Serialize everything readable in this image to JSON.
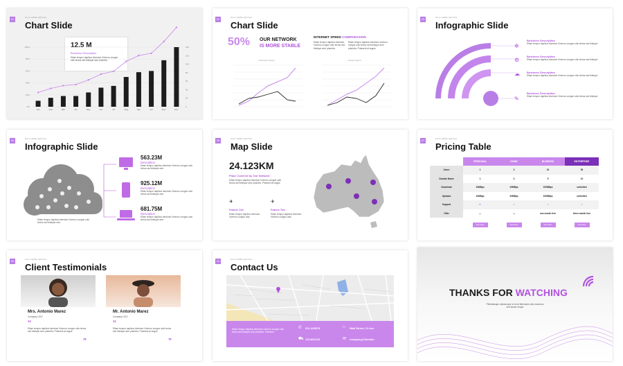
{
  "slides": {
    "chart1": {
      "num": "01",
      "tag": "lorem subtitle right here",
      "title": "Chart Slide",
      "stat": "12.5 M",
      "stat_label": "Business Description",
      "stat_body": "Etiam tempor dapibus interdum Viverrus congue odio lectus sed tristique sem pharetra"
    },
    "chart2": {
      "num": "02",
      "tag": "lorem subtitle right here",
      "title": "Chart Slide",
      "percent": "50%",
      "network_1": "OUR NETWORK",
      "network_2": "IS MORE STABLE",
      "speed_title_1": "INTERNET SPEED",
      "speed_title_2": "COMPARASION",
      "left_body": "Etiam tempor dapibus interdum Viverrus congue odio lectus sed tristique sem pharetra.",
      "right_body": "Etiam tempor dapibus interdum Viverrus congue odio lectus sed tristique sem pharetra. Praesent at augue",
      "download_label": "Download Speed",
      "upload_label": "Upload Speed"
    },
    "infographic1": {
      "num": "03",
      "tag": "lorem subtitle right here",
      "title": "Infographic Slide",
      "items": [
        {
          "label": "Business Description",
          "body": "Etiam tempor dapibus interdum Viverrus congue odio lectus sed tristique"
        },
        {
          "label": "Business Description",
          "body": "Etiam tempor dapibus interdum Viverrus congue odio lectus sed tristique"
        },
        {
          "label": "Business Description",
          "body": "Etiam tempor dapibus interdum Viverrus congue odio lectus sed tristique"
        },
        {
          "label": "Business Description",
          "body": "Etiam tempor dapibus interdum Viverrus congue odio lectus sed tristique"
        }
      ]
    },
    "infographic2": {
      "num": "04",
      "tag": "lorem subtitle right here",
      "title": "Infographic Slide",
      "cloud_body": "Etiam tempor dapibus interdum Viverrus congue odio lectus sed tristique sem",
      "devices": [
        {
          "value": "563.23M",
          "label": "Description",
          "body": "Etiam tempor dapibus interdum Viverrus congue odio lectus sed tristique sem"
        },
        {
          "value": "925.12M",
          "label": "Description",
          "body": "Etiam tempor dapibus interdum Viverrus congue odio lectus sed tristique sem"
        },
        {
          "value": "681.75M",
          "label": "Description",
          "body": "Etiam tempor dapibus interdum Viverrus congue odio lectus sed tristique sem"
        }
      ]
    },
    "map": {
      "num": "05",
      "tag": "lorem subtitle right here",
      "title": "Map Slide",
      "stat": "24.123KM",
      "stat_label": "Place Covered by Our Network",
      "stat_body": "Etiam tempor dapibus interdum Viverrus congue odio lectus sed tristique sem pharetra. Praesent at augue",
      "feature_1": "Feature One",
      "feature_1_body": "Etiam tempor dapibus interdum Viverrus congue odio",
      "feature_2": "Feature Two",
      "feature_2_body": "Etiam tempor dapibus interdum Viverrus congue odio"
    },
    "pricing": {
      "num": "07",
      "tag": "lorem subtitle right here",
      "title": "Pricing Table",
      "plans": [
        "PERSONAL",
        "HOME",
        "BUSINESS",
        "ENTERPRISE"
      ],
      "rows": [
        {
          "label": "Users",
          "values": [
            "1",
            "3",
            "10",
            "50"
          ]
        },
        {
          "label": "Domain Name",
          "values": [
            "1",
            "3",
            "5",
            "10"
          ]
        },
        {
          "label": "Download",
          "values": [
            "10MBps",
            "20MBps",
            "100MBps",
            "unlimited"
          ]
        },
        {
          "label": "Uploads",
          "values": [
            "10MBps",
            "20MBps",
            "100MBps",
            "unlimited"
          ]
        },
        {
          "label": "Support",
          "values": [
            "✕",
            "✓",
            "✓",
            "✓"
          ]
        },
        {
          "label": "Offer",
          "values": [
            "—",
            "—",
            "one month free",
            "three month free"
          ]
        }
      ],
      "cta": "Get Plan"
    },
    "testimonials": {
      "num": "09",
      "tag": "lorem subtitle right here",
      "title": "Client Testimonials",
      "people": [
        {
          "name": "Mrs. Antonio Marez",
          "role": "Company CEO",
          "quote": "Etiam tempor dapibus interdum Viverrus congue odio lectus sed tristique sem pharetra. Praesent at augue"
        },
        {
          "name": "Mr. Antonio Marez",
          "role": "Company CEO",
          "quote": "Etiam tempor dapibus interdum Viverrus congue odio lectus sed tristique sem pharetra. Praesent at augue"
        }
      ]
    },
    "contact": {
      "num": "10",
      "tag": "lorem subtitle right here",
      "title": "Contact Us",
      "body": "Etiam tempor dapibus interdum Viverrus congue odio lectus sed tristique sem pharetra. Praesent",
      "phone": "021-345678",
      "phone2": "123-892123",
      "address": "Wall Street, 21 Ave",
      "email": "company@domain"
    },
    "thanks": {
      "title_1": "THANKS FOR",
      "title_2": "WATCHING",
      "body": "Pellentesque ullamcorper et mi at bibendum odio maximus sed auctor neque"
    }
  },
  "chart_data": {
    "type": "bar",
    "categories": [
      "Jan",
      "Feb",
      "Mar",
      "Apr",
      "May",
      "Jun",
      "Jul",
      "Aug",
      "Sep",
      "Oct",
      "Nov",
      "Dec"
    ],
    "series": [
      {
        "values": [
          10,
          15,
          18,
          18,
          24,
          32,
          35,
          50,
          58,
          60,
          78,
          100
        ]
      }
    ],
    "ylabel_left": [
      "0%",
      "20%",
      "40%",
      "60%",
      "80%",
      "100%"
    ],
    "ylabel_right": [
      "0",
      "20",
      "40",
      "60",
      "80",
      "100",
      "120",
      "140"
    ]
  },
  "colors": {
    "accent": "#b053de",
    "accent_light": "#d7a8f3",
    "dark": "#1c1c1c"
  }
}
